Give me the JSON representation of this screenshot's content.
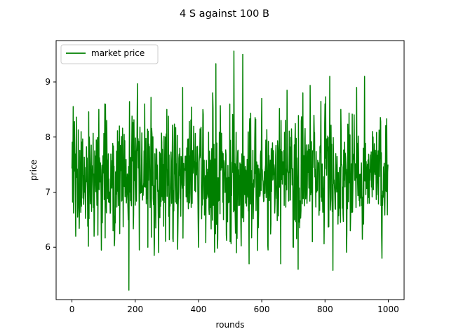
{
  "chart_data": {
    "type": "line",
    "title": "4 S against 100 B",
    "xlabel": "rounds",
    "ylabel": "price",
    "xlim": [
      -50,
      1050
    ],
    "ylim": [
      5.05,
      9.75
    ],
    "xticks": [
      0,
      200,
      400,
      600,
      800,
      1000
    ],
    "yticks": [
      6,
      7,
      8,
      9
    ],
    "grid": false,
    "legend_placement": "upper left",
    "series": [
      {
        "name": "market price",
        "color": "#008000",
        "x_start": 0,
        "x_step": 1,
        "count": 1000,
        "mean": 7.3,
        "sd": 0.55,
        "seed": 7,
        "points": [
          [
            0,
            7.43
          ],
          [
            5,
            6.62
          ],
          [
            8,
            8.28
          ],
          [
            12,
            6.2
          ],
          [
            20,
            8.13
          ],
          [
            40,
            7.0
          ],
          [
            55,
            8.0
          ],
          [
            70,
            6.2
          ],
          [
            85,
            8.5
          ],
          [
            110,
            8.3
          ],
          [
            130,
            6.3
          ],
          [
            150,
            8.2
          ],
          [
            170,
            7.0
          ],
          [
            178,
            6.5
          ],
          [
            180,
            5.22
          ],
          [
            190,
            8.38
          ],
          [
            230,
            8.6
          ],
          [
            240,
            6.0
          ],
          [
            260,
            5.85
          ],
          [
            300,
            8.5
          ],
          [
            320,
            6.1
          ],
          [
            350,
            8.9
          ],
          [
            400,
            6.0
          ],
          [
            445,
            8.8
          ],
          [
            455,
            9.33
          ],
          [
            460,
            5.98
          ],
          [
            500,
            6.1
          ],
          [
            512,
            9.56
          ],
          [
            520,
            5.9
          ],
          [
            540,
            9.5
          ],
          [
            560,
            5.7
          ],
          [
            600,
            8.7
          ],
          [
            620,
            5.95
          ],
          [
            660,
            5.7
          ],
          [
            680,
            8.85
          ],
          [
            700,
            6.0
          ],
          [
            715,
            5.6
          ],
          [
            730,
            8.8
          ],
          [
            760,
            6.1
          ],
          [
            800,
            8.6
          ],
          [
            815,
            9.1
          ],
          [
            825,
            5.58
          ],
          [
            850,
            8.5
          ],
          [
            880,
            6.3
          ],
          [
            900,
            8.9
          ],
          [
            925,
            9.1
          ],
          [
            950,
            8.1
          ],
          [
            980,
            5.8
          ],
          [
            995,
            8.33
          ],
          [
            999,
            7.5
          ]
        ]
      }
    ]
  }
}
